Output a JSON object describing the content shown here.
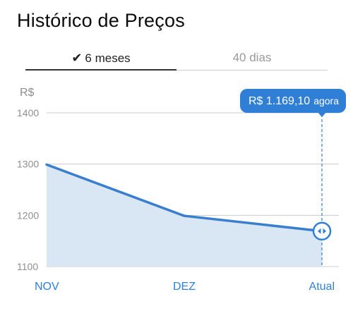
{
  "header": {
    "title": "Histórico de Preços"
  },
  "tabs": [
    {
      "label": "6 meses",
      "active": true
    },
    {
      "label": "40 dias",
      "active": false
    }
  ],
  "tooltip": {
    "value": "R$ 1.169,10",
    "suffix": "agora"
  },
  "colors": {
    "accent": "#2f7fd6",
    "line": "#3a7fce",
    "fill": "#d9e6f3",
    "grid": "#cccccc",
    "axis_text": "#8f8f8f",
    "xtick_text": "#2f7fd6"
  },
  "chart_data": {
    "type": "area",
    "ylabel": "R$",
    "categories": [
      "NOV",
      "DEZ",
      "Atual"
    ],
    "values": [
      1299,
      1199,
      1169.1
    ],
    "yticks": [
      1100,
      1200,
      1300,
      1400
    ],
    "ylim": [
      1100,
      1400
    ],
    "grid": true
  }
}
